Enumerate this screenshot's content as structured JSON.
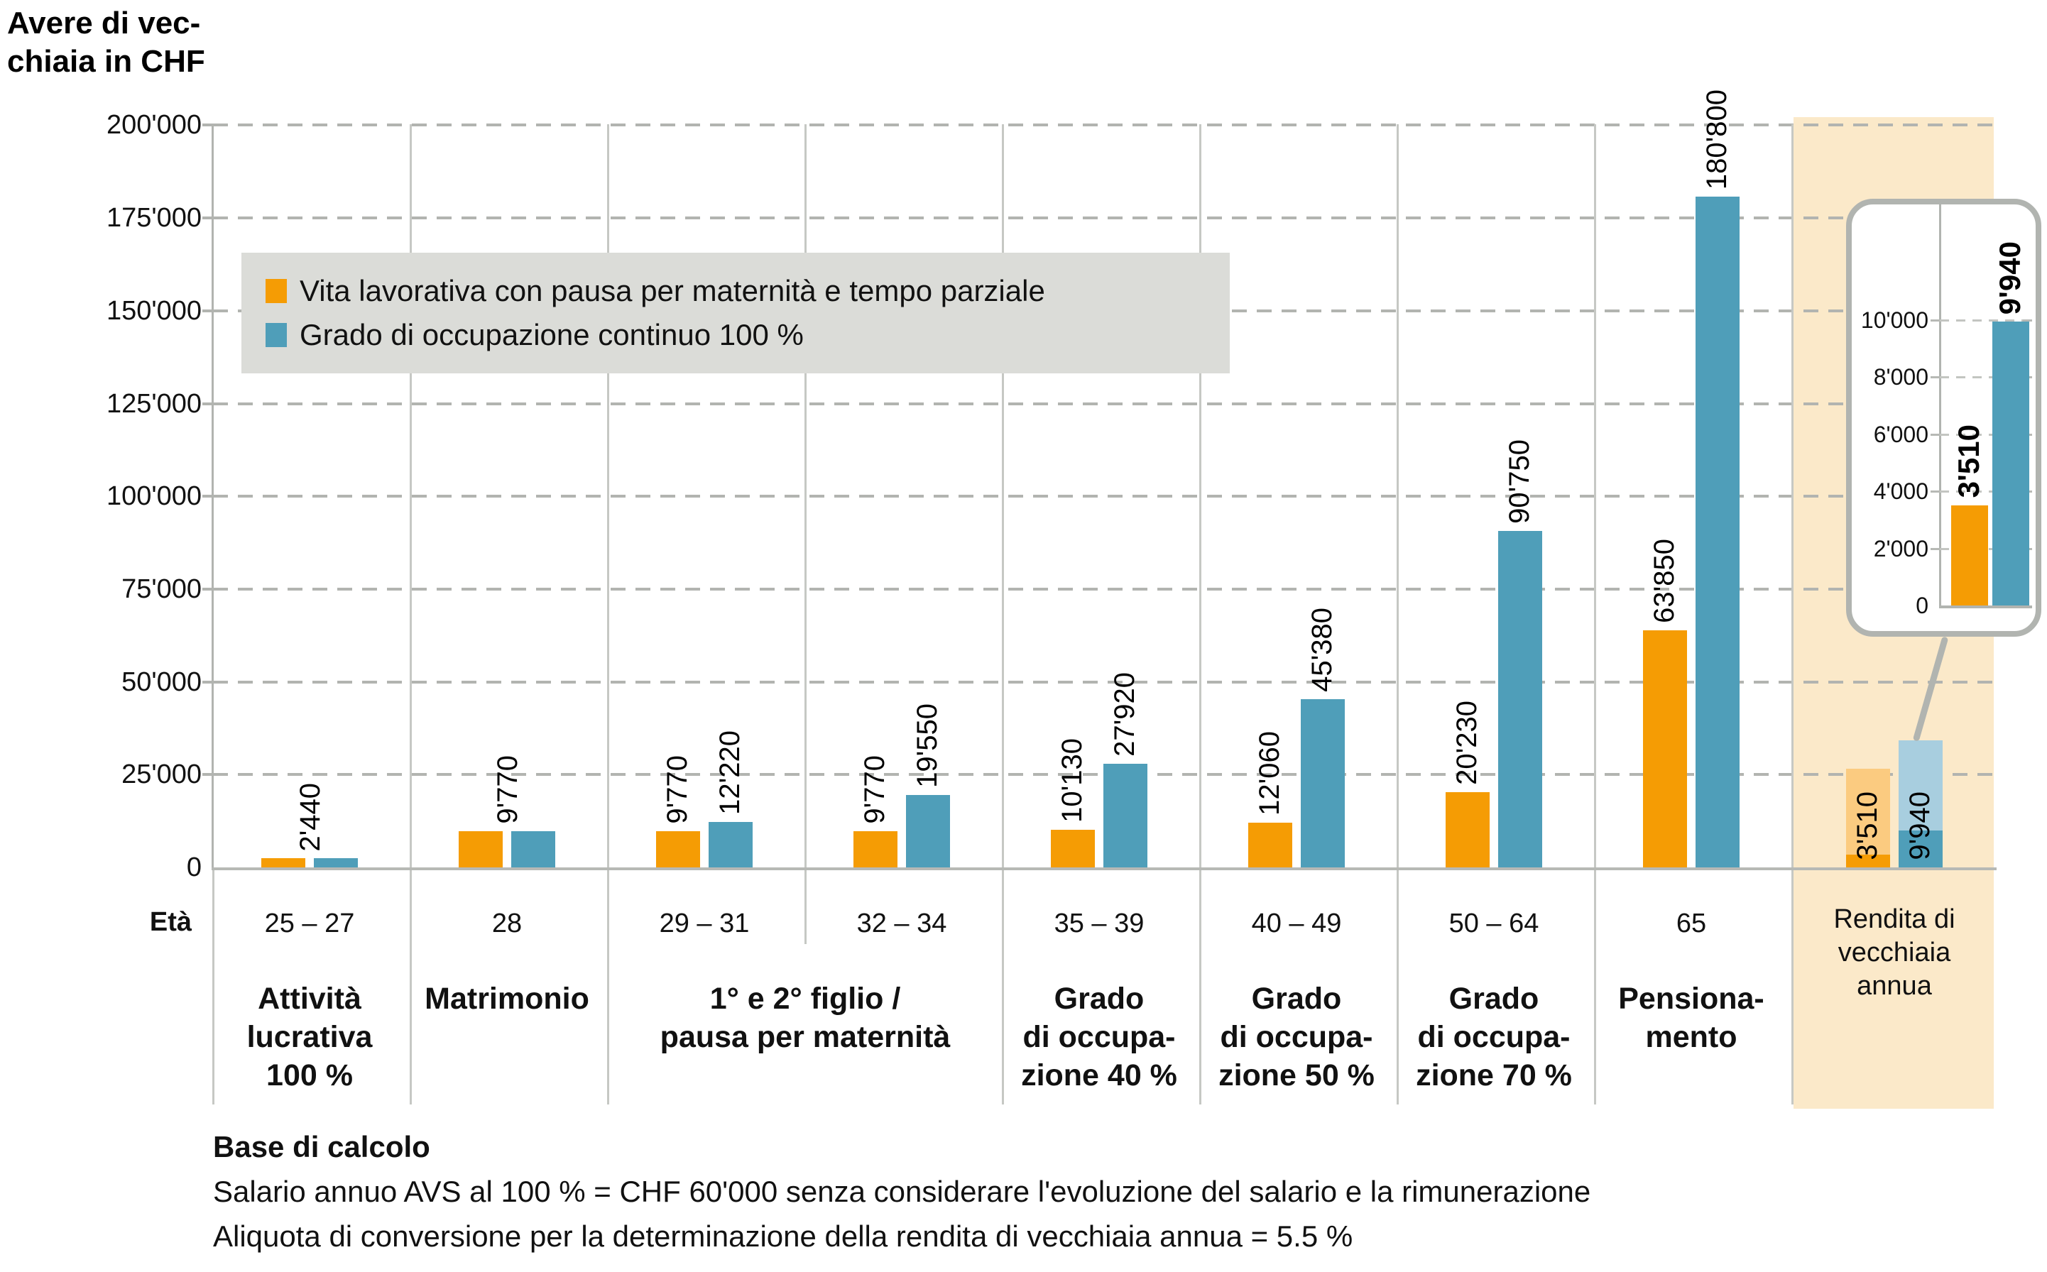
{
  "title": {
    "lines": [
      "Avere di vec-",
      "chiaia in CHF"
    ]
  },
  "legend": {
    "items": [
      {
        "id": "maternity",
        "label": "Vita lavorativa con pausa per maternità e tempo parziale",
        "color": "#F59C04"
      },
      {
        "id": "full",
        "label": "Grado di occupazione continuo 100 %",
        "color": "#4F9EB9"
      }
    ]
  },
  "colors": {
    "maternity": "#F59C04",
    "full": "#4F9EB9",
    "maternity_faded": "#FBCB80",
    "full_faded": "#A8CEDF",
    "annuity_background": "#FBE9C9"
  },
  "y_axis": {
    "tick_labels": [
      "200'000",
      "175'000",
      "150'000",
      "125'000",
      "100'000",
      "75'000",
      "50'000",
      "25'000",
      "0"
    ]
  },
  "x_axis": {
    "label": "Età"
  },
  "groups": [
    {
      "age": "25 – 27",
      "values": {
        "maternity": 2440,
        "full": 2440
      },
      "value_labels": {
        "shared": "2'440"
      },
      "category_lines": [
        "Attività",
        "lucrativa",
        "100 %"
      ]
    },
    {
      "age": "28",
      "values": {
        "maternity": 9770,
        "full": 9770
      },
      "value_labels": {
        "shared": "9'770"
      },
      "category_lines": [
        "Matrimonio"
      ]
    },
    {
      "age": "29 – 31",
      "values": {
        "maternity": 9770,
        "full": 12220
      },
      "value_labels": {
        "maternity": "9'770",
        "full": "12'220"
      }
    },
    {
      "age": "32 – 34",
      "values": {
        "maternity": 9770,
        "full": 19550
      },
      "value_labels": {
        "maternity": "9'770",
        "full": "19'550"
      }
    },
    {
      "age": "35 – 39",
      "values": {
        "maternity": 10130,
        "full": 27920
      },
      "value_labels": {
        "maternity": "10'130",
        "full": "27'920"
      },
      "category_lines": [
        "Grado",
        "di occupa-",
        "zione 40 %"
      ]
    },
    {
      "age": "40 – 49",
      "values": {
        "maternity": 12060,
        "full": 45380
      },
      "value_labels": {
        "maternity": "12'060",
        "full": "45'380"
      },
      "category_lines": [
        "Grado",
        "di occupa-",
        "zione 50 %"
      ]
    },
    {
      "age": "50 – 64",
      "values": {
        "maternity": 20230,
        "full": 90750
      },
      "value_labels": {
        "maternity": "20'230",
        "full": "90'750"
      },
      "category_lines": [
        "Grado",
        "di occupa-",
        "zione 70 %"
      ]
    },
    {
      "age": "65",
      "values": {
        "maternity": 63850,
        "full": 180800
      },
      "value_labels": {
        "maternity": "63'850",
        "full": "180'800"
      },
      "category_lines": [
        "Pensiona-",
        "mento"
      ]
    }
  ],
  "combined_category": {
    "lines": [
      "1° e 2° figlio /",
      "pausa per maternità"
    ]
  },
  "annuity": {
    "label_lines": [
      "Rendita di",
      "vecchiaia",
      "annua"
    ],
    "values": {
      "maternity": 3510,
      "full": 9940
    },
    "value_labels": {
      "maternity": "3'510",
      "full": "9'940"
    }
  },
  "inset": {
    "tick_labels": [
      "10'000",
      "8'000",
      "6'000",
      "4'000",
      "2'000",
      "0"
    ],
    "values": {
      "maternity": 3510,
      "full": 9940
    },
    "value_labels": {
      "maternity": "3'510",
      "full": "9'940"
    }
  },
  "footnote": {
    "title": "Base di calcolo",
    "lines": [
      "Salario annuo AVS al 100 % = CHF 60'000 senza considerare l'evoluzione del salario e la rimunerazione",
      "Aliquota di conversione per la determinazione della rendita di vecchiaia annua = 5.5 %"
    ]
  },
  "chart_data": {
    "type": "bar",
    "title": "Avere di vecchiaia in CHF",
    "ylabel": "Avere di vecchiaia in CHF",
    "ylim": [
      0,
      200000
    ],
    "ytick_step": 25000,
    "grid": true,
    "legend_position": "upper-left-inside",
    "categories": [
      "25–27 Attività lucrativa 100 %",
      "28 Matrimonio",
      "29–31 1° e 2° figlio / pausa per maternità",
      "32–34 1° e 2° figlio / pausa per maternità",
      "35–39 Grado di occupazione 40 %",
      "40–49 Grado di occupazione 50 %",
      "50–64 Grado di occupazione 70 %",
      "65 Pensionamento",
      "Rendita di vecchiaia annua"
    ],
    "series": [
      {
        "name": "Vita lavorativa con pausa per maternità e tempo parziale",
        "values": [
          2440,
          9770,
          9770,
          9770,
          10130,
          12060,
          20230,
          63850,
          3510
        ]
      },
      {
        "name": "Grado di occupazione continuo 100 %",
        "values": [
          2440,
          9770,
          12220,
          19550,
          27920,
          45380,
          90750,
          180800,
          9940
        ]
      }
    ],
    "inset": {
      "type": "bar",
      "categories": [
        "Rendita di vecchiaia annua"
      ],
      "ylim": [
        0,
        10000
      ],
      "ytick_step": 2000,
      "series": [
        {
          "name": "Vita lavorativa con pausa per maternità e tempo parziale",
          "values": [
            3510
          ]
        },
        {
          "name": "Grado di occupazione continuo 100 %",
          "values": [
            9940
          ]
        }
      ]
    }
  }
}
